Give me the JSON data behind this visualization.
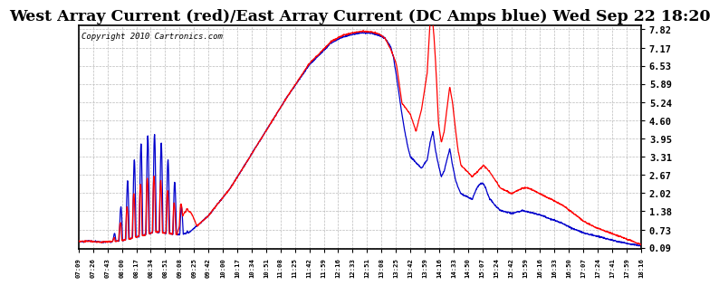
{
  "title": "West Array Current (red)/East Array Current (DC Amps blue) Wed Sep 22 18:20",
  "copyright": "Copyright 2010 Cartronics.com",
  "yticks": [
    0.09,
    0.73,
    1.38,
    2.02,
    2.67,
    3.31,
    3.95,
    4.6,
    5.24,
    5.89,
    6.53,
    7.17,
    7.82
  ],
  "ymin": 0.09,
  "ymax": 7.82,
  "x_labels": [
    "07:09",
    "07:26",
    "07:43",
    "08:00",
    "08:17",
    "08:34",
    "08:51",
    "09:08",
    "09:25",
    "09:42",
    "10:00",
    "10:17",
    "10:34",
    "10:51",
    "11:08",
    "11:25",
    "11:42",
    "11:59",
    "12:16",
    "12:33",
    "12:51",
    "13:08",
    "13:25",
    "13:42",
    "13:59",
    "14:16",
    "14:33",
    "14:50",
    "15:07",
    "15:24",
    "15:42",
    "15:59",
    "16:16",
    "16:33",
    "16:50",
    "17:07",
    "17:24",
    "17:41",
    "17:59",
    "18:16"
  ],
  "background_color": "#ffffff",
  "grid_color": "#bbbbbb",
  "line_color_red": "#ff0000",
  "line_color_blue": "#0000cc",
  "title_fontsize": 13,
  "copyright_fontsize": 7
}
